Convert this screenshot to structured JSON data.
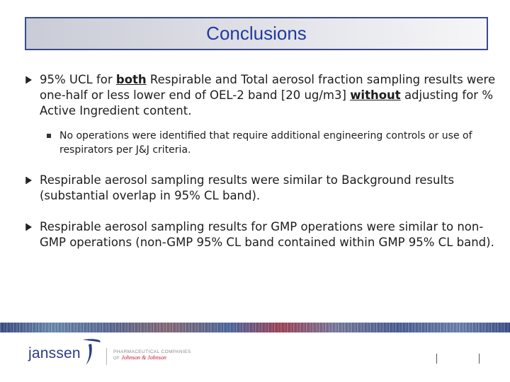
{
  "slide": {
    "title": "Conclusions",
    "bullets": [
      {
        "text_before": "95% UCL for ",
        "bold1": "both",
        "text_middle": " Respirable and Total aerosol fraction sampling results were one-half or less lower end of OEL-2 band [20 ug/m3] ",
        "bold2": "without",
        "text_after": " adjusting for % Active Ingredient content.",
        "sub": "No operations were identified that require additional engineering controls or use of respirators per J&J criteria."
      },
      {
        "text": "Respirable aerosol sampling results were similar to Background results (substantial overlap in 95% CL band)."
      },
      {
        "text": "Respirable aerosol sampling results for GMP operations were similar to non-GMP operations (non-GMP 95% CL band contained within GMP 95% CL band)."
      }
    ]
  },
  "footer": {
    "logo_text": "janssen",
    "pharma_line1": "PHARMACEUTICAL COMPANIES",
    "of_text": "OF",
    "jj_text": "Johnson & Johnson"
  },
  "colors": {
    "title": "#233a9c",
    "border": "#3b4a8c",
    "logo": "#2a3b86"
  }
}
